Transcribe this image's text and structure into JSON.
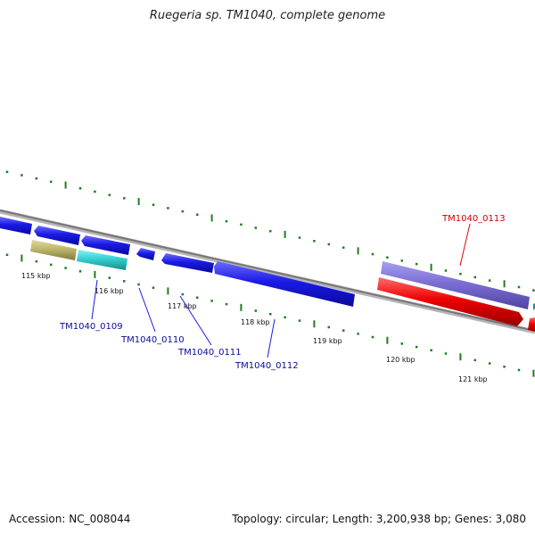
{
  "title": "Ruegeria sp. TM1040, complete genome",
  "accession": "Accession: NC_008044",
  "summary": "Topology: circular; Length: 3,200,938 bp; Genes: 3,080",
  "scale_labels": [
    "115 kbp",
    "116 kbp",
    "117 kbp",
    "118 kbp",
    "119 kbp",
    "120 kbp",
    "121 kbp"
  ],
  "gene_labels": {
    "g0109": "TM1040_0109",
    "g0110": "TM1040_0110",
    "g0111": "TM1040_0111",
    "g0112": "TM1040_0112",
    "g0113": "TM1040_0113"
  },
  "colors": {
    "forward_cds": "#1a1ae6",
    "cds_label": "#0a0a9a",
    "highlight": "#ee0000",
    "highlight_feature": "#7b6fd4",
    "tick": "#1e7d1e",
    "backbone": "#888888",
    "khaki_feature": "#bdb76b",
    "cyan_feature": "#35d0d0"
  }
}
